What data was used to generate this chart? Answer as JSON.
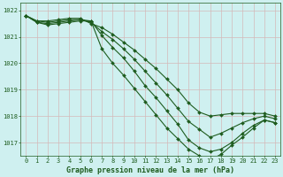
{
  "xlabel": "Graphe pression niveau de la mer (hPa)",
  "background_color": "#cff0f0",
  "grid_color": "#d4b8b8",
  "line_color": "#1e5c1e",
  "x": [
    0,
    1,
    2,
    3,
    4,
    5,
    6,
    7,
    8,
    9,
    10,
    11,
    12,
    13,
    14,
    15,
    16,
    17,
    18,
    19,
    20,
    21,
    22,
    23
  ],
  "series": [
    [
      1021.8,
      1021.6,
      1021.6,
      1021.65,
      1021.7,
      1021.7,
      1021.5,
      1021.35,
      1021.1,
      1020.8,
      1020.5,
      1020.15,
      1019.8,
      1019.4,
      1019.0,
      1018.5,
      1018.15,
      1018.0,
      1018.05,
      1018.1,
      1018.1,
      1018.1,
      1018.1,
      1018.0
    ],
    [
      1021.8,
      1021.6,
      1021.55,
      1021.6,
      1021.65,
      1021.65,
      1021.55,
      1021.2,
      1020.9,
      1020.55,
      1020.15,
      1019.7,
      1019.25,
      1018.8,
      1018.3,
      1017.8,
      1017.5,
      1017.2,
      1017.35,
      1017.55,
      1017.75,
      1017.9,
      1018.0,
      1017.9
    ],
    [
      1021.8,
      1021.55,
      1021.5,
      1021.55,
      1021.6,
      1021.65,
      1021.6,
      1021.05,
      1020.6,
      1020.2,
      1019.7,
      1019.15,
      1018.7,
      1018.2,
      1017.7,
      1017.1,
      1016.8,
      1016.65,
      1016.75,
      1017.0,
      1017.35,
      1017.65,
      1017.85,
      1017.75
    ],
    [
      1021.8,
      1021.55,
      1021.45,
      1021.5,
      1021.55,
      1021.6,
      1021.6,
      1020.55,
      1020.0,
      1019.55,
      1019.05,
      1018.55,
      1018.05,
      1017.55,
      1017.15,
      1016.75,
      1016.5,
      1016.35,
      1016.55,
      1016.9,
      1017.2,
      1017.55,
      1017.85,
      1017.75
    ]
  ],
  "ylim_min": 1016.5,
  "ylim_max": 1022.3,
  "yticks": [
    1017,
    1018,
    1019,
    1020,
    1021,
    1022
  ],
  "xticks": [
    0,
    1,
    2,
    3,
    4,
    5,
    6,
    7,
    8,
    9,
    10,
    11,
    12,
    13,
    14,
    15,
    16,
    17,
    18,
    19,
    20,
    21,
    22,
    23
  ],
  "marker": "D",
  "markersize": 2.0,
  "linewidth": 0.8,
  "tick_fontsize": 5.0,
  "label_fontsize": 6.0
}
